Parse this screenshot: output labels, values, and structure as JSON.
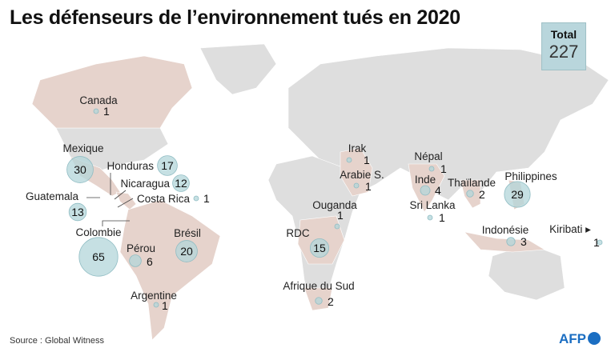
{
  "title": "Les défenseurs de l’environnement tués en 2020",
  "total": {
    "label": "Total",
    "value": "227"
  },
  "source": "Source : Global Witness",
  "logo": "AFP",
  "colors": {
    "circle": "#b3d5da",
    "highlight_country": "#e6d3cc",
    "land": "#dedede",
    "total_box": "#b9d6dc"
  },
  "countries": [
    {
      "name": "Canada",
      "value": 1
    },
    {
      "name": "Mexique",
      "value": 30
    },
    {
      "name": "Honduras",
      "value": 17
    },
    {
      "name": "Nicaragua",
      "value": 12
    },
    {
      "name": "Costa Rica",
      "value": 1
    },
    {
      "name": "Guatemala",
      "value": 13
    },
    {
      "name": "Colombie",
      "value": 65
    },
    {
      "name": "Pérou",
      "value": 6
    },
    {
      "name": "Brésil",
      "value": 20
    },
    {
      "name": "Argentine",
      "value": 1
    },
    {
      "name": "Irak",
      "value": 1
    },
    {
      "name": "Arabie S.",
      "value": 1
    },
    {
      "name": "Ouganda",
      "value": 1
    },
    {
      "name": "RDC",
      "value": 15
    },
    {
      "name": "Afrique du Sud",
      "value": 2
    },
    {
      "name": "Népal",
      "value": 1
    },
    {
      "name": "Inde",
      "value": 4
    },
    {
      "name": "Sri Lanka",
      "value": 1
    },
    {
      "name": "Thaïlande",
      "value": 2
    },
    {
      "name": "Philippines",
      "value": 29
    },
    {
      "name": "Indonésie",
      "value": 3
    },
    {
      "name": "Kiribati",
      "value": 1
    }
  ]
}
